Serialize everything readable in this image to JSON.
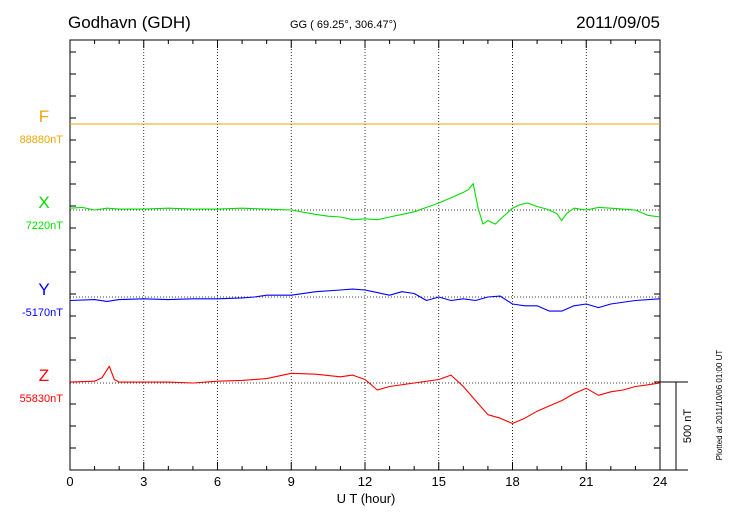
{
  "header": {
    "station": "Godhavn (GDH)",
    "coords": "GG ( 69.25°, 306.47°)",
    "date": "2011/09/05"
  },
  "plotted_note": "Plotted at 2011/10/06 01:00 UT",
  "scale_label": "500 nT",
  "chart_data": {
    "type": "line",
    "title": "Godhavn (GDH)",
    "xlabel": "U T (hour)",
    "ylabel": "",
    "xlim": [
      0,
      24
    ],
    "x_ticks": [
      "0",
      "3",
      "6",
      "9",
      "12",
      "15",
      "18",
      "21",
      "24"
    ],
    "grid": true,
    "scale_bar_nT": 500,
    "series": [
      {
        "name": "F",
        "baseline_label": "88880nT",
        "baseline_nT": 88880,
        "color": "#f0a500",
        "x": [
          0,
          24
        ],
        "y": [
          0,
          0
        ]
      },
      {
        "name": "X",
        "baseline_label": "7220nT",
        "baseline_nT": 7220,
        "color": "#00e000",
        "x": [
          0,
          0.5,
          1,
          1.5,
          2,
          3,
          4,
          5,
          6,
          7,
          8,
          9,
          10,
          10.5,
          11,
          11.5,
          12,
          12.5,
          13,
          13.5,
          14,
          14.5,
          15,
          15.5,
          16,
          16.2,
          16.4,
          16.6,
          16.8,
          17,
          17.3,
          17.6,
          18,
          18.3,
          18.6,
          19,
          19.4,
          19.8,
          20,
          20.2,
          20.5,
          21,
          21.5,
          22,
          22.5,
          23,
          23.5,
          24
        ],
        "y": [
          10,
          15,
          0,
          10,
          5,
          5,
          10,
          5,
          5,
          10,
          5,
          0,
          -25,
          -35,
          -40,
          -55,
          -50,
          -55,
          -40,
          -25,
          -10,
          15,
          40,
          70,
          100,
          115,
          150,
          10,
          -80,
          -60,
          -80,
          -40,
          10,
          30,
          40,
          20,
          5,
          -20,
          -60,
          -20,
          10,
          0,
          15,
          10,
          5,
          0,
          -30,
          -40
        ]
      },
      {
        "name": "Y",
        "baseline_label": "-5170nT",
        "baseline_nT": -5170,
        "color": "#0000ff",
        "x": [
          0,
          1,
          1.5,
          2,
          3,
          4,
          5,
          6,
          7,
          7.5,
          8,
          9,
          10,
          11,
          11.5,
          12,
          12.5,
          13,
          13.5,
          14,
          14.5,
          15,
          15.5,
          16,
          16.5,
          17,
          17.5,
          18,
          18.5,
          19,
          19.5,
          20,
          20.5,
          21,
          21.5,
          22,
          23,
          24
        ],
        "y": [
          -20,
          -15,
          -25,
          -15,
          -10,
          -15,
          -10,
          -10,
          -5,
          0,
          10,
          10,
          30,
          40,
          45,
          40,
          25,
          10,
          30,
          20,
          -20,
          0,
          -20,
          -10,
          -20,
          0,
          5,
          -40,
          -50,
          -50,
          -80,
          -80,
          -50,
          -40,
          -60,
          -40,
          -20,
          -10
        ]
      },
      {
        "name": "Z",
        "baseline_label": "55830nT",
        "baseline_nT": 55830,
        "color": "#ff0000",
        "x": [
          0,
          1,
          1.3,
          1.6,
          1.8,
          2,
          3,
          4,
          5,
          6,
          7,
          8,
          9,
          10,
          11,
          11.5,
          12,
          12.5,
          13,
          14,
          15,
          15.5,
          16,
          16.5,
          17,
          17.5,
          18,
          18.5,
          19,
          19.5,
          20,
          20.5,
          21,
          21.5,
          22,
          22.5,
          23,
          23.5,
          24
        ],
        "y": [
          5,
          10,
          30,
          95,
          20,
          5,
          5,
          5,
          0,
          10,
          15,
          25,
          55,
          50,
          35,
          45,
          20,
          -40,
          -20,
          0,
          20,
          45,
          -20,
          -100,
          -180,
          -200,
          -230,
          -200,
          -160,
          -130,
          -100,
          -60,
          -30,
          -70,
          -50,
          -40,
          -20,
          -10,
          0
        ]
      }
    ]
  }
}
